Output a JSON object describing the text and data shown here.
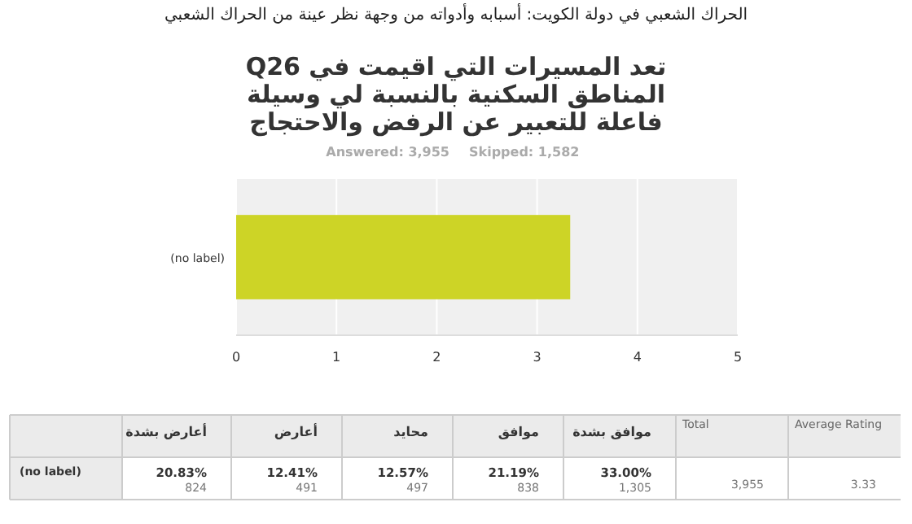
{
  "chart_data": {
    "type": "bar",
    "orientation": "horizontal",
    "title": "الحراك الشعبي في دولة الكويت: أسبابه وأدواته من وجهة نظر عينة من الحراك الشعبي",
    "subtitle": "Q26 تعد المسيرات التي اقيمت في المناطق السكنية بالنسبة لي وسيلة فاعلة للتعبير عن الرفض والاحتجاج",
    "categories": [
      "(no label)"
    ],
    "values": [
      3.33
    ],
    "color": "#cdd426",
    "xlim": [
      0,
      5
    ],
    "xticks": [
      0,
      1,
      2,
      3,
      4,
      5
    ],
    "grid": "x",
    "annotations": [
      "Answered: 3,955",
      "Skipped: 1,582",
      "أعارض بشدة",
      "أعارض",
      "محايد",
      "موافق",
      "موافق بشدة",
      "Total",
      "Average Rating",
      "(no label)",
      "20.83%",
      "824",
      "12.41%",
      "491",
      "12.57%",
      "497",
      "21.19%",
      "838",
      "33.00%",
      "1,305",
      "3,955",
      "3.33"
    ]
  }
}
